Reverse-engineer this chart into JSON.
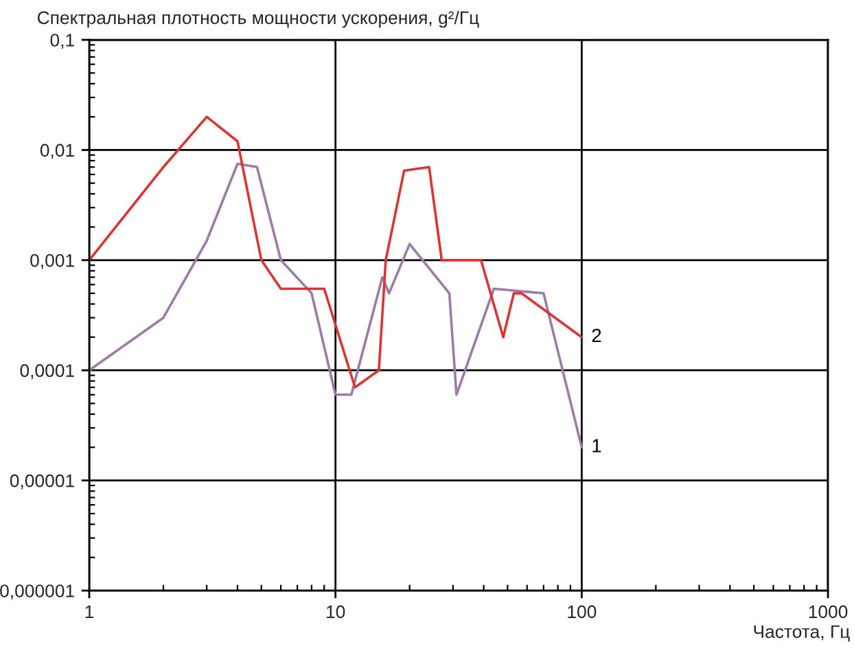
{
  "chart_data": {
    "type": "line",
    "ylabel": "Спектральная плотность мощности ускорения, g²/Гц",
    "xlabel": "Частота, Гц",
    "log": "xy",
    "xlim": [
      1,
      1000
    ],
    "xticks": [
      1,
      10,
      100,
      1000
    ],
    "ylim": [
      1e-06,
      0.1
    ],
    "yticks": [
      {
        "value": 0.1,
        "label": "0,1"
      },
      {
        "value": 0.01,
        "label": "0,01"
      },
      {
        "value": 0.001,
        "label": "0,001"
      },
      {
        "value": 0.0001,
        "label": "0,0001"
      },
      {
        "value": 1e-05,
        "label": "0,00001"
      },
      {
        "value": 1e-06,
        "label": "0,000001"
      }
    ],
    "grid": true,
    "line_style": "solid",
    "series": [
      {
        "name": "1",
        "color": "#9e7aa6",
        "x": [
          1,
          2,
          3,
          4,
          4.8,
          6,
          8,
          10,
          11.6,
          15.5,
          16.5,
          20,
          29,
          31,
          44,
          70,
          100
        ],
        "values": [
          0.0001,
          0.0003,
          0.0015,
          0.0075,
          0.007,
          0.001,
          0.0005,
          6e-05,
          6e-05,
          0.0007,
          0.0005,
          0.0014,
          0.0005,
          6e-05,
          0.00055,
          0.0005,
          2e-05
        ]
      },
      {
        "name": "2",
        "color": "#dc3434",
        "x": [
          1,
          2,
          3,
          4,
          5,
          6,
          9,
          12,
          15,
          16,
          19,
          24,
          27,
          39,
          48,
          53,
          57,
          100
        ],
        "values": [
          0.001,
          0.007,
          0.02,
          0.012,
          0.001,
          0.00055,
          0.00055,
          7e-05,
          0.0001,
          0.001,
          0.0065,
          0.007,
          0.001,
          0.001,
          0.0002,
          0.0005,
          0.0005,
          0.0002
        ]
      }
    ]
  }
}
